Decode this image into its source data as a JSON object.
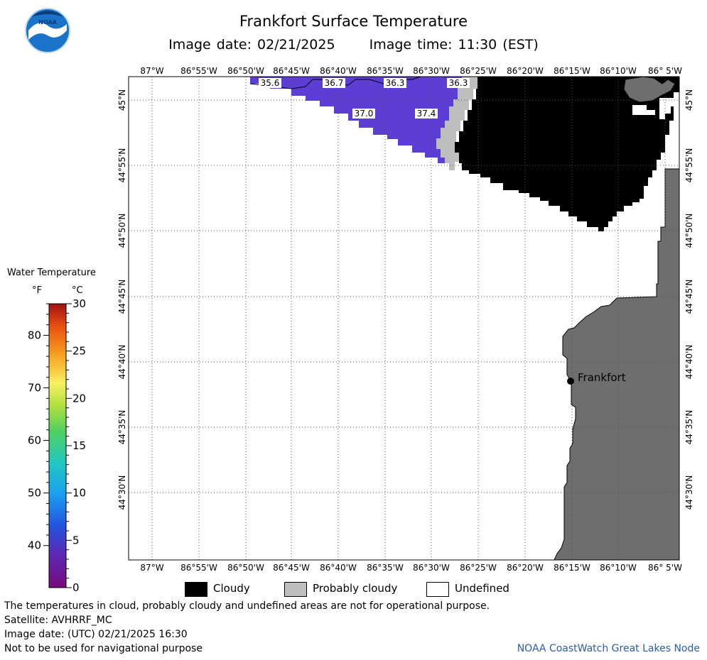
{
  "title": "Frankfort Surface Temperature",
  "subtitle": {
    "image_date": "Image date: 02/21/2025",
    "image_time": "Image time: 11:30 (EST)"
  },
  "colorbar": {
    "title": "Water Temperature",
    "unit_f": "°F",
    "unit_c": "°C",
    "f_ticks": [
      "80",
      "70",
      "60",
      "50",
      "40"
    ],
    "c_ticks": [
      "30",
      "25",
      "20",
      "15",
      "10",
      "5",
      "0"
    ]
  },
  "map": {
    "lon_labels": [
      "87°W",
      "86°55'W",
      "86°50'W",
      "86°45'W",
      "86°40'W",
      "86°35'W",
      "86°30'W",
      "86°25'W",
      "86°20'W",
      "86°15'W",
      "86°10'W",
      "86° 5'W"
    ],
    "lat_labels": [
      "45°N",
      "44°55'N",
      "44°50'N",
      "44°45'N",
      "44°40'N",
      "44°35'N",
      "44°30'N"
    ],
    "temp_labels": [
      "35.6",
      "36.7",
      "36.3",
      "36.3",
      "37.0",
      "37.4"
    ],
    "city": "Frankfort",
    "colors": {
      "cloudy": "#000000",
      "probably_cloudy": "#bebebe",
      "land": "#6e6e6e",
      "water": "#5c3ed4"
    }
  },
  "legend": {
    "cloudy": "Cloudy",
    "probably_cloudy": "Probably cloudy",
    "undefined": "Undefined"
  },
  "footer": {
    "note": "The temperatures in cloud, probably cloudy and undefined areas are not for operational purpose.",
    "satellite": "Satellite: AVHRRF_MC",
    "utc_date": "Image date: (UTC) 02/21/2025  16:30",
    "nav": "Not to be used for navigational purpose",
    "credit": "NOAA CoastWatch Great Lakes Node"
  }
}
